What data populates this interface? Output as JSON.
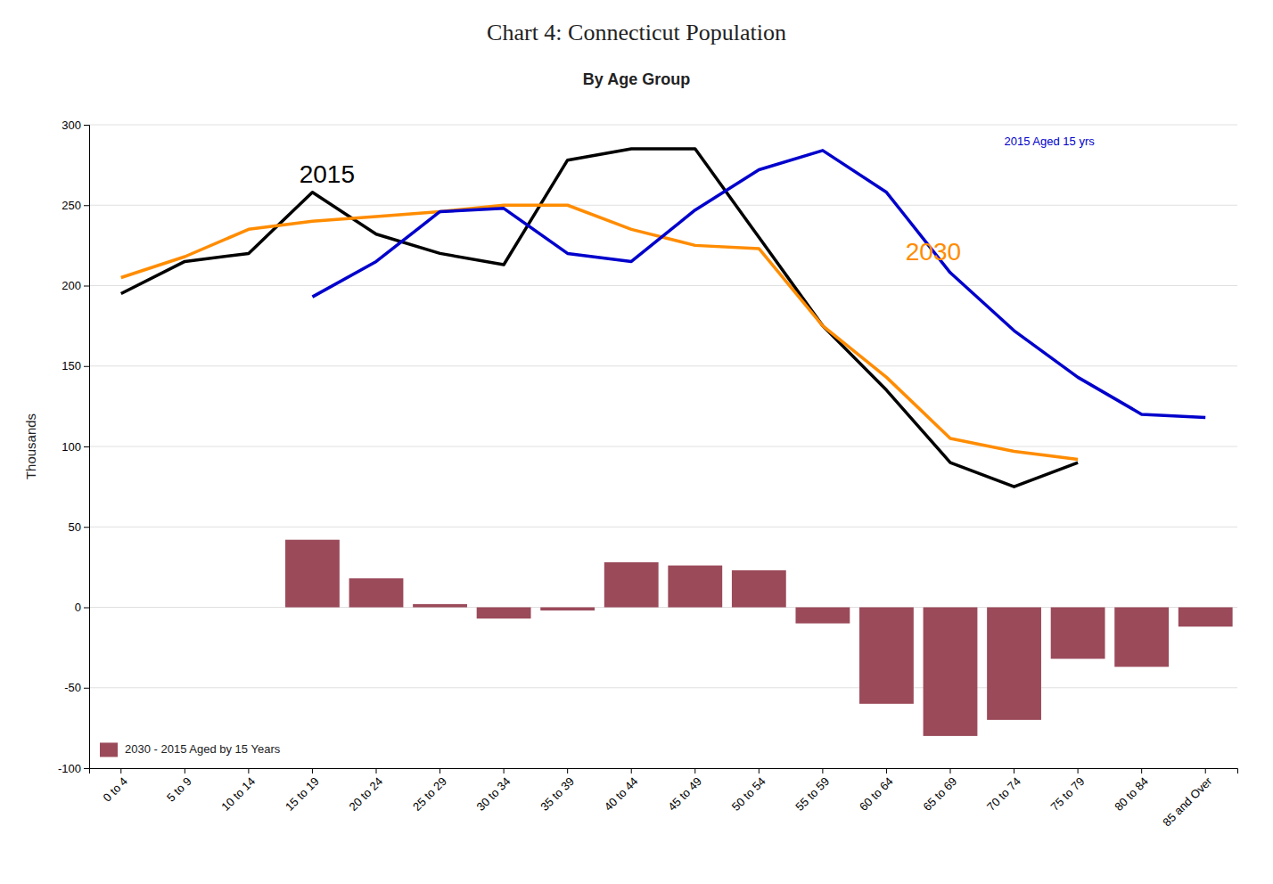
{
  "chart_data": {
    "type": "bar",
    "title": "Chart 4: Connecticut Population",
    "subtitle": "By Age Group",
    "y_label": "Thousands",
    "categories": [
      "0 to 4",
      "5 to 9",
      "10 to 14",
      "15 to 19",
      "20 to 24",
      "25 to 29",
      "30 to 34",
      "35 to 39",
      "40 to 44",
      "45 to 49",
      "50 to 54",
      "55 to 59",
      "60 to 64",
      "65 to 69",
      "70 to 74",
      "75 to 79",
      "80 to 84",
      "85 and Over"
    ],
    "series": [
      {
        "name": "2030 - 2015 Aged by 15 Years",
        "type": "bar",
        "color": "#9B4A5A",
        "values": [
          0,
          0,
          0,
          42,
          18,
          2,
          -7,
          -2,
          28,
          26,
          23,
          -10,
          -60,
          -80,
          -70,
          -32,
          -37,
          -12
        ]
      },
      {
        "name": "2015",
        "type": "line",
        "color": "#000000",
        "values": [
          195,
          215,
          220,
          258,
          232,
          220,
          213,
          278,
          285,
          285,
          230,
          175,
          135,
          90,
          75,
          90,
          null,
          null
        ]
      },
      {
        "name": "2030",
        "type": "line",
        "color": "#FF8C00",
        "values": [
          205,
          218,
          235,
          240,
          243,
          246,
          250,
          250,
          235,
          225,
          223,
          175,
          143,
          105,
          97,
          92,
          null,
          null
        ]
      },
      {
        "name": "2015 Aged 15 yrs",
        "type": "line",
        "color": "#0000CC",
        "values": [
          null,
          null,
          null,
          193,
          215,
          246,
          248,
          220,
          215,
          247,
          272,
          284,
          258,
          208,
          172,
          143,
          120,
          118
        ]
      }
    ],
    "ylim": [
      -100,
      300
    ],
    "yticks": [
      -100,
      -50,
      0,
      50,
      100,
      150,
      200,
      250,
      300
    ],
    "grid": true,
    "legend": "lower left"
  }
}
